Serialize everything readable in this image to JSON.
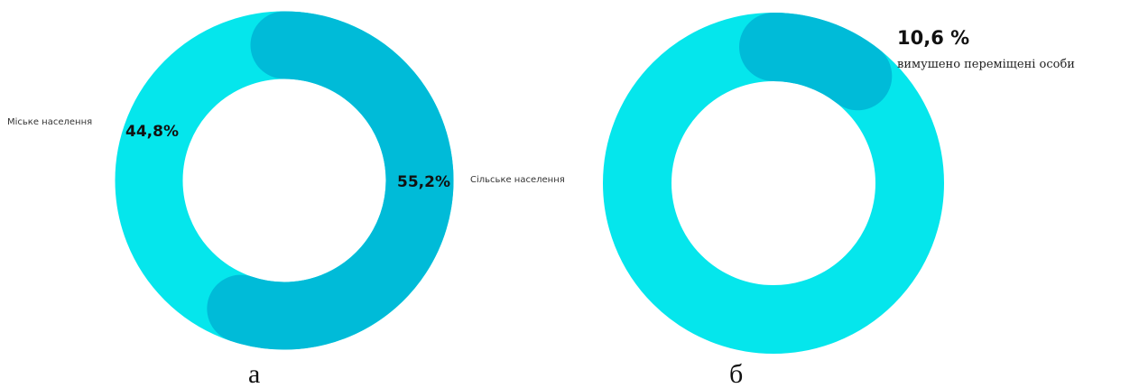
{
  "colors": {
    "light": "#05E6EC",
    "dark": "#00BBD8"
  },
  "chart_data": [
    {
      "type": "pie",
      "subtype": "donut",
      "panel_label": "а",
      "slices": [
        {
          "label": "Сільське населення",
          "value": 55.2,
          "value_label": "55,2%",
          "color": "#00BBD8"
        },
        {
          "label": "Міське населення",
          "value": 44.8,
          "value_label": "44,8%",
          "color": "#05E6EC"
        }
      ]
    },
    {
      "type": "pie",
      "subtype": "donut",
      "panel_label": "б",
      "slices": [
        {
          "label": "вимушено переміщені особи",
          "value": 10.6,
          "value_label": "10,6 %",
          "color": "#00BBD8"
        },
        {
          "label": "",
          "value": 89.4,
          "value_label": "",
          "color": "#05E6EC"
        }
      ]
    }
  ]
}
